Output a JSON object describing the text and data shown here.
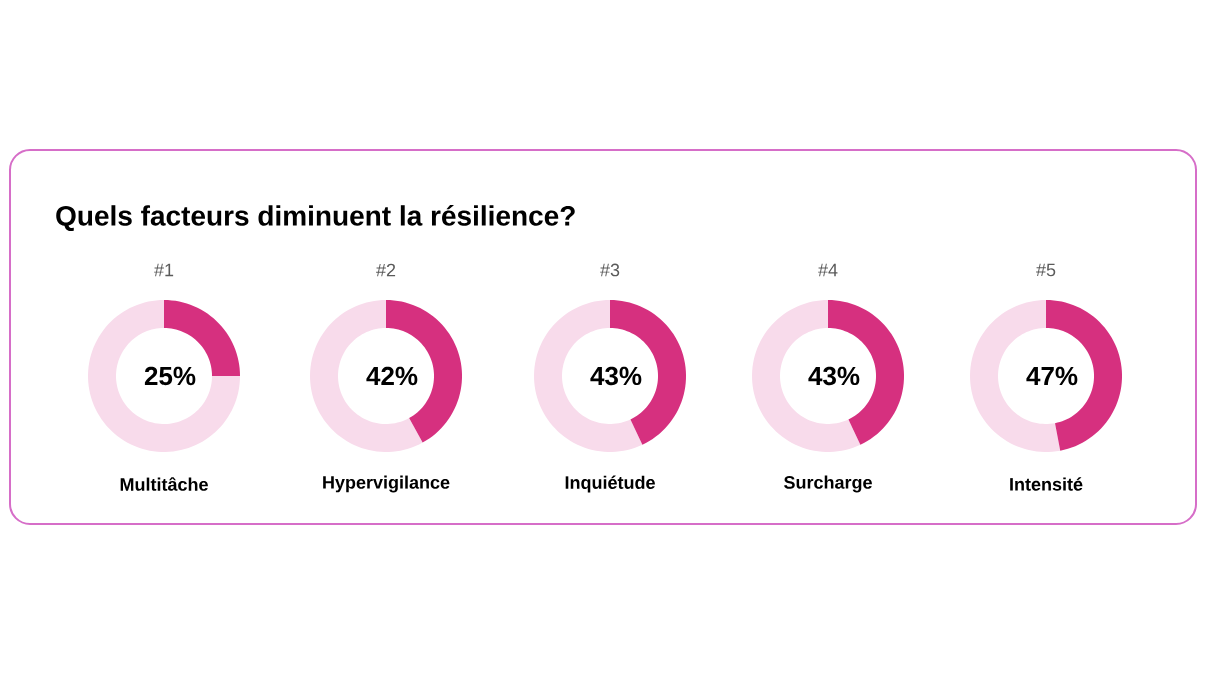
{
  "chart_data": [
    {
      "type": "other",
      "title": "Quels facteurs diminuent la résilience?"
    },
    {
      "type": "donut",
      "title": "#1",
      "xlabel": "Multitâche",
      "categories": [
        null,
        null
      ],
      "values": [
        25,
        75
      ],
      "colors": [
        "#d6307f",
        "#f8dbeb"
      ],
      "value_labels": [
        "25%",
        null
      ]
    },
    {
      "type": "donut",
      "title": "#2",
      "xlabel": "Hypervigilance",
      "categories": [
        null,
        null
      ],
      "values": [
        42,
        58
      ],
      "colors": [
        "#d6307f",
        "#f8dbeb"
      ],
      "value_labels": [
        "42%",
        null
      ]
    },
    {
      "type": "donut",
      "title": "#3",
      "xlabel": "Inquiétude",
      "categories": [
        null,
        null
      ],
      "values": [
        43,
        57
      ],
      "colors": [
        "#d6307f",
        "#f8dbeb"
      ],
      "value_labels": [
        "43%",
        null
      ]
    },
    {
      "type": "donut",
      "title": "#4",
      "xlabel": "Surcharge",
      "categories": [
        null,
        null
      ],
      "values": [
        43,
        57
      ],
      "colors": [
        "#d6307f",
        "#f8dbeb"
      ],
      "value_labels": [
        "43%",
        null
      ]
    },
    {
      "type": "donut",
      "title": "#5",
      "xlabel": "Intensité",
      "categories": [
        null,
        null
      ],
      "values": [
        47,
        53
      ],
      "colors": [
        "#d6307f",
        "#f8dbeb"
      ],
      "value_labels": [
        "47%",
        null
      ]
    }
  ]
}
